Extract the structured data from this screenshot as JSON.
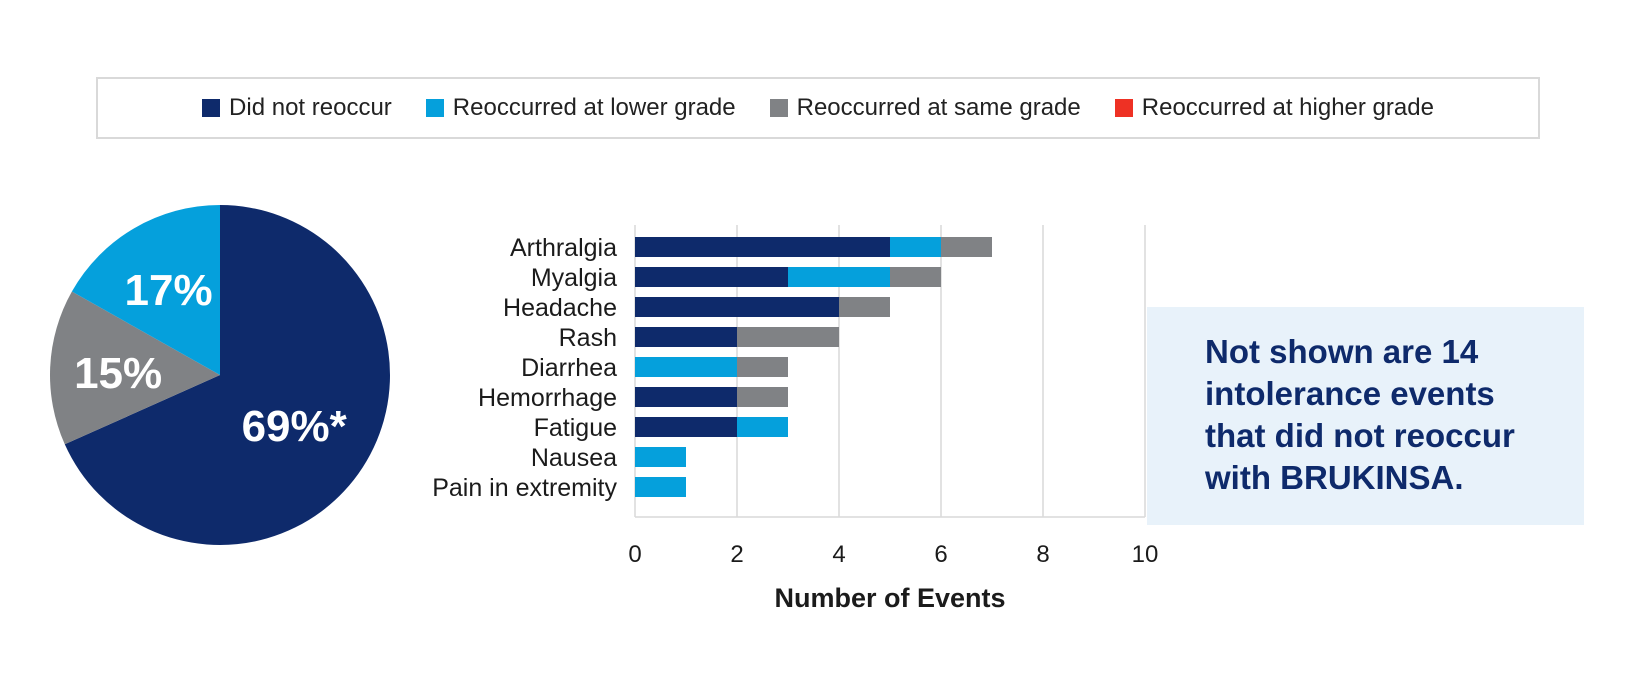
{
  "legend": {
    "items": [
      {
        "label": "Did not reoccur",
        "color": "#0e2a6b"
      },
      {
        "label": "Reoccurred at lower grade",
        "color": "#05a0dc"
      },
      {
        "label": "Reoccurred at same grade",
        "color": "#808285"
      },
      {
        "label": "Reoccurred at higher grade",
        "color": "#ee3124"
      }
    ]
  },
  "chart_data": [
    {
      "type": "pie",
      "slices": [
        {
          "label": "69%*",
          "value": 69,
          "color": "#0e2a6b"
        },
        {
          "label": "15%",
          "value": 15,
          "color": "#808285"
        },
        {
          "label": "17%",
          "value": 17,
          "color": "#05a0dc"
        }
      ]
    },
    {
      "type": "bar",
      "orientation": "horizontal",
      "stacked": true,
      "categories": [
        "Arthralgia",
        "Myalgia",
        "Headache",
        "Rash",
        "Diarrhea",
        "Hemorrhage",
        "Fatigue",
        "Nausea",
        "Pain in extremity"
      ],
      "series": [
        {
          "name": "Did not reoccur",
          "color": "#0e2a6b",
          "values": [
            5,
            3,
            4,
            2,
            0,
            2,
            2,
            0,
            0
          ]
        },
        {
          "name": "Reoccurred at lower grade",
          "color": "#05a0dc",
          "values": [
            1,
            2,
            0,
            0,
            2,
            0,
            1,
            1,
            1
          ]
        },
        {
          "name": "Reoccurred at same grade",
          "color": "#808285",
          "values": [
            1,
            1,
            1,
            2,
            1,
            1,
            0,
            0,
            0
          ]
        },
        {
          "name": "Reoccurred at higher grade",
          "color": "#ee3124",
          "values": [
            0,
            0,
            0,
            0,
            0,
            0,
            0,
            0,
            0
          ]
        }
      ],
      "xlabel": "Number of Events",
      "xlim": [
        0,
        10
      ],
      "xticks": [
        0,
        2,
        4,
        6,
        8,
        10
      ],
      "grid": true
    }
  ],
  "note": {
    "lines": [
      "Not shown are 14",
      "intolerance events",
      "that did not reoccur",
      "with BRUKINSA."
    ]
  }
}
